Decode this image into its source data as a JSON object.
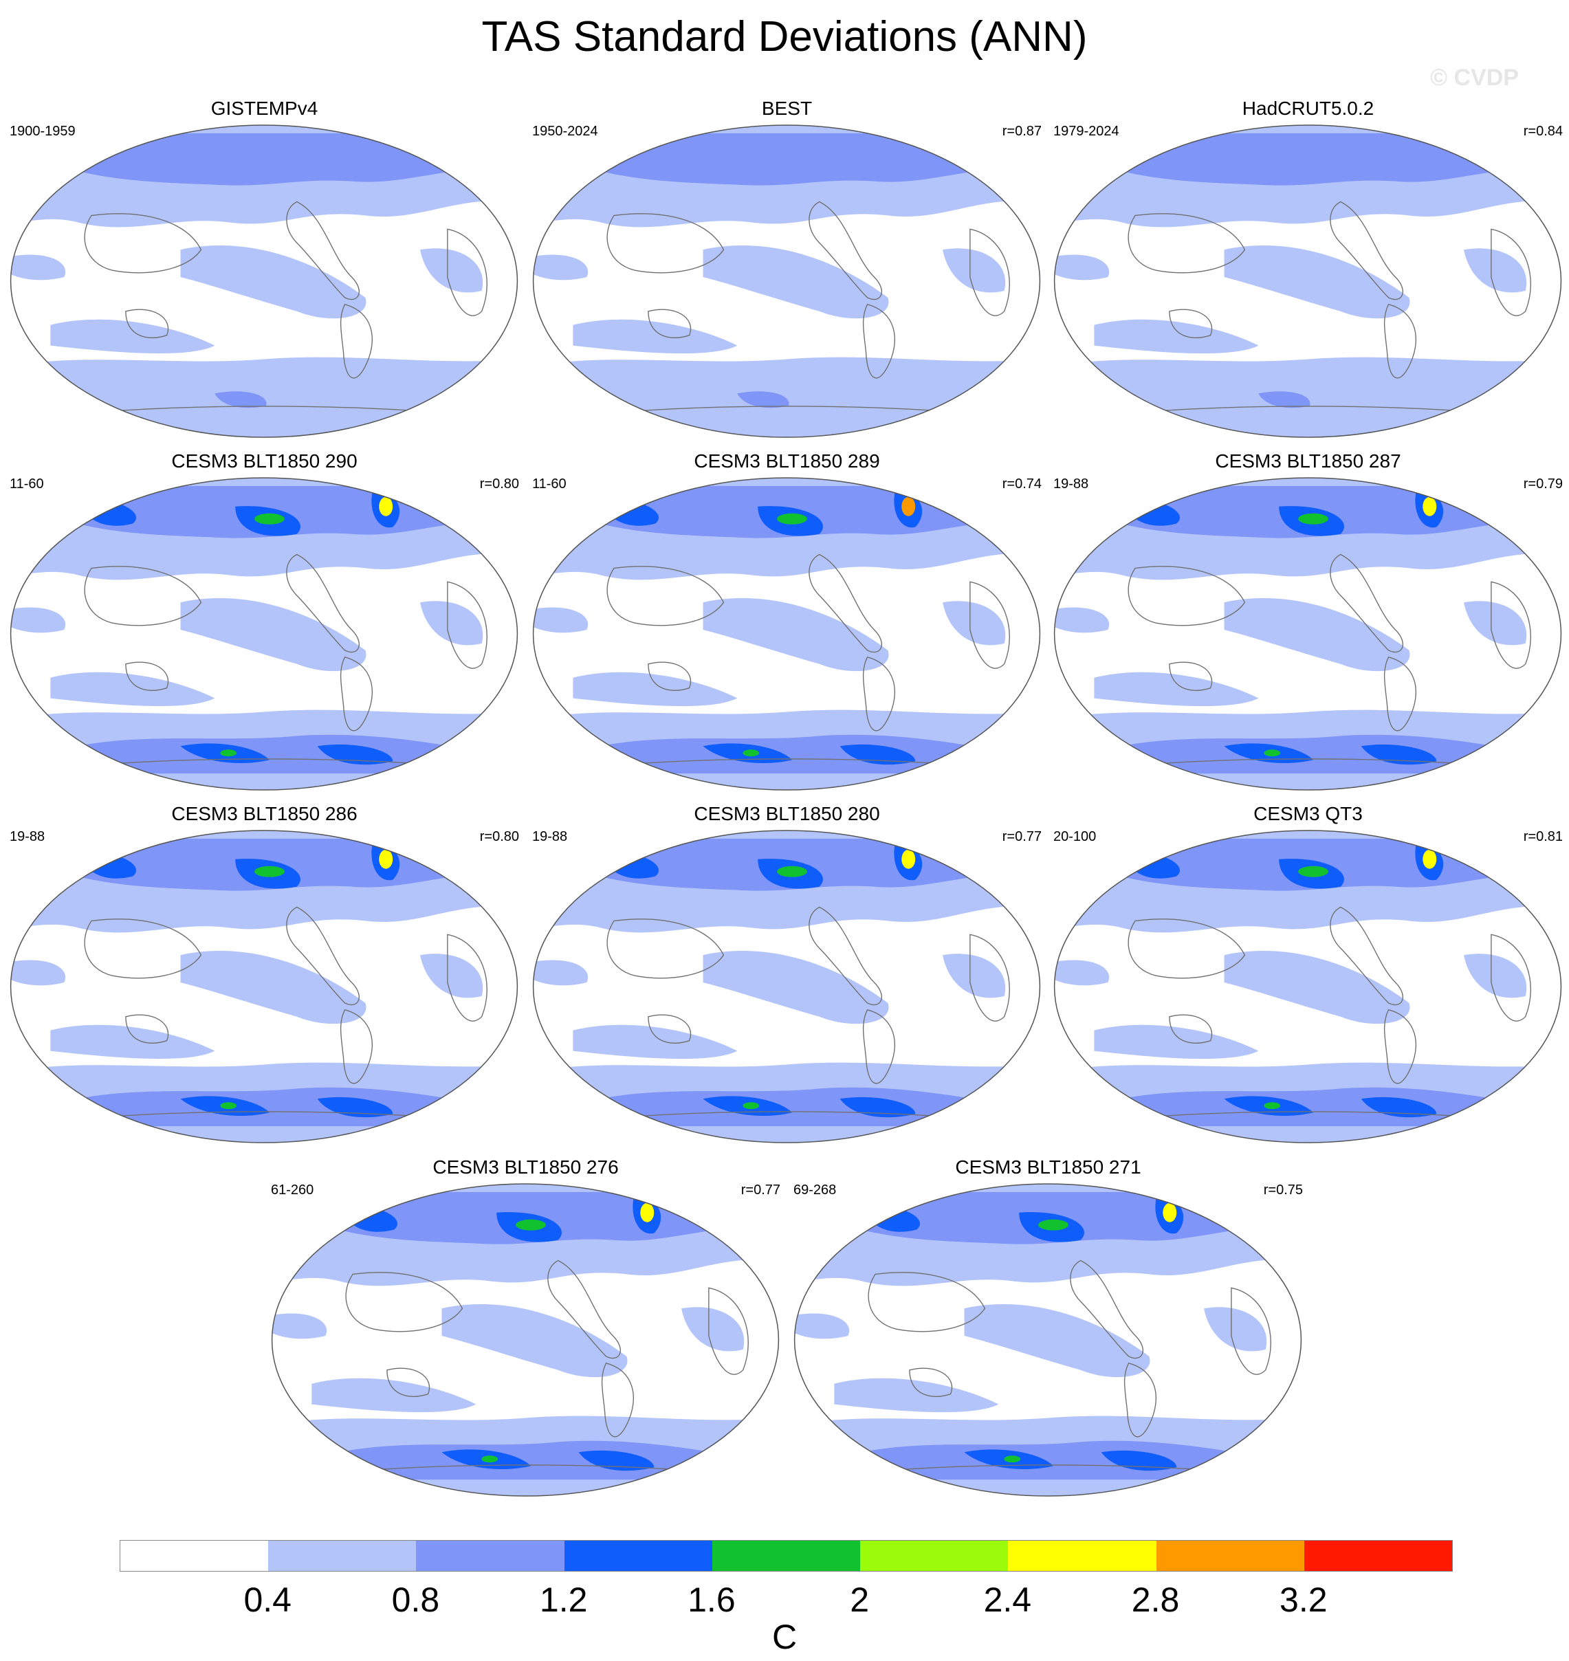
{
  "title": "TAS Standard Deviations (ANN)",
  "copyright": "© CVDP",
  "panels": [
    {
      "title": "GISTEMPv4",
      "period": "1900-1959",
      "r": ""
    },
    {
      "title": "BEST",
      "period": "1950-2024",
      "r": "r=0.87"
    },
    {
      "title": "HadCRUT5.0.2",
      "period": "1979-2024",
      "r": "r=0.84"
    },
    {
      "title": "CESM3 BLT1850 290",
      "period": "11-60",
      "r": "r=0.80"
    },
    {
      "title": "CESM3 BLT1850 289",
      "period": "11-60",
      "r": "r=0.74"
    },
    {
      "title": "CESM3 BLT1850 287",
      "period": "19-88",
      "r": "r=0.79"
    },
    {
      "title": "CESM3 BLT1850 286",
      "period": "19-88",
      "r": "r=0.80"
    },
    {
      "title": "CESM3 BLT1850 280",
      "period": "19-88",
      "r": "r=0.77"
    },
    {
      "title": "CESM3 QT3",
      "period": "20-100",
      "r": "r=0.81"
    },
    {
      "title": "CESM3 BLT1850 276",
      "period": "61-260",
      "r": "r=0.77"
    },
    {
      "title": "CESM3 BLT1850 271",
      "period": "69-268",
      "r": "r=0.75"
    }
  ],
  "colorbar": {
    "units": "C",
    "ticks": [
      "0.4",
      "0.8",
      "1.2",
      "1.6",
      "2",
      "2.4",
      "2.8",
      "3.2"
    ],
    "colors": [
      "#ffffff",
      "#b3c4fb",
      "#7f95f7",
      "#0f5dfa",
      "#12c12e",
      "#9afc0a",
      "#ffff00",
      "#ff9900",
      "#ff1900"
    ]
  },
  "palette": {
    "low": "#ffffff",
    "light": "#b3c4fb",
    "mid": "#7f95f7",
    "high": "#0f5dfa",
    "green": "#12c12e",
    "lime": "#9afc0a",
    "yellow": "#ffff00",
    "orange": "#ff9900",
    "red": "#ff1900"
  }
}
